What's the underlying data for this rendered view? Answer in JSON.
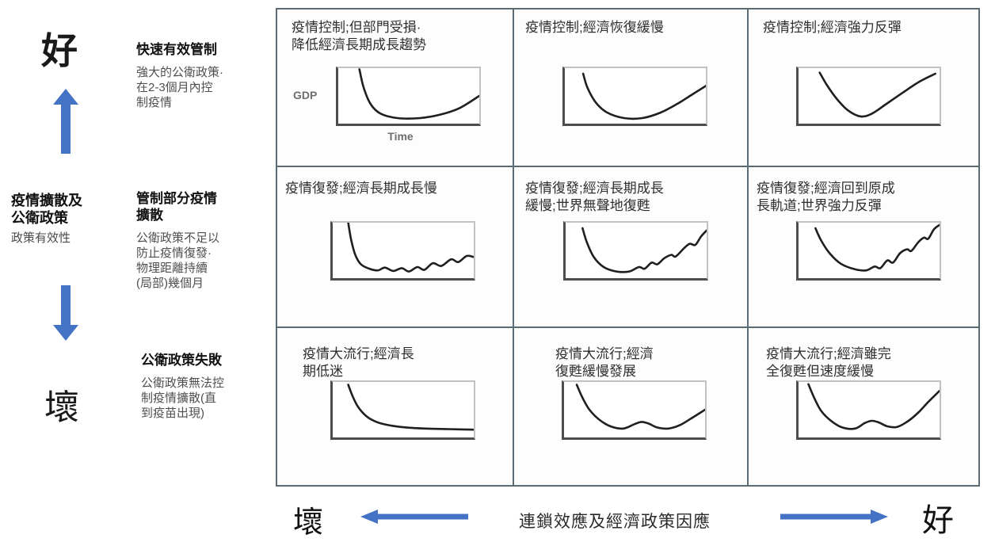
{
  "colors": {
    "accent_blue": "#4472C4",
    "grid_line": "#5b6b75",
    "curve": "#1f1f1f"
  },
  "y_axis": {
    "top_label": "好",
    "bottom_label": "壞",
    "title_bold": "疫情擴散及\n公衛政策",
    "title_sub": "政策有效性"
  },
  "x_axis": {
    "left_label": "壞",
    "title": "連鎖效應及經濟政策因應",
    "right_label": "好"
  },
  "row_headers": [
    {
      "title": "快速有效管制",
      "desc": "強大的公衛政策·\n在2-3個月內控\n制疫情"
    },
    {
      "title": "管制部分疫情\n擴散",
      "desc": "公衛政策不足以\n防止疫情復發·\n物理距離持續\n(局部)幾個月"
    },
    {
      "title": "公衛政策失敗",
      "desc": "公衛政策無法控\n制疫情擴散(直\n到疫苗出現)"
    }
  ],
  "first_chart_axis": {
    "gdp_label": "GDP",
    "time_label": "Time"
  },
  "cells": [
    {
      "caption": "疫情控制;但部門受損·\n降低經濟長期成長趨勢",
      "curve": [
        [
          15,
          2
        ],
        [
          18,
          35
        ],
        [
          23,
          65
        ],
        [
          30,
          82
        ],
        [
          42,
          90
        ],
        [
          58,
          90
        ],
        [
          72,
          84
        ],
        [
          86,
          72
        ],
        [
          100,
          50
        ]
      ]
    },
    {
      "caption": "疫情控制;經濟恢復緩慢",
      "curve": [
        [
          13,
          10
        ],
        [
          16,
          35
        ],
        [
          22,
          62
        ],
        [
          30,
          80
        ],
        [
          42,
          90
        ],
        [
          55,
          90
        ],
        [
          68,
          80
        ],
        [
          80,
          64
        ],
        [
          90,
          48
        ],
        [
          100,
          32
        ]
      ]
    },
    {
      "caption": "疫情控制;經濟強力反彈",
      "curve": [
        [
          15,
          8
        ],
        [
          20,
          30
        ],
        [
          27,
          55
        ],
        [
          35,
          76
        ],
        [
          44,
          87
        ],
        [
          52,
          82
        ],
        [
          62,
          65
        ],
        [
          74,
          44
        ],
        [
          86,
          24
        ],
        [
          97,
          10
        ]
      ]
    },
    {
      "caption": "疫情復發;經濟長期成長慢",
      "curve": [
        [
          11,
          0
        ],
        [
          13,
          30
        ],
        [
          16,
          58
        ],
        [
          20,
          75
        ],
        [
          26,
          83
        ],
        [
          32,
          86
        ],
        [
          37,
          81
        ],
        [
          43,
          87
        ],
        [
          49,
          82
        ],
        [
          54,
          88
        ],
        [
          60,
          80
        ],
        [
          65,
          85
        ],
        [
          71,
          73
        ],
        [
          77,
          78
        ],
        [
          84,
          66
        ],
        [
          89,
          71
        ],
        [
          95,
          60
        ],
        [
          100,
          62
        ]
      ]
    },
    {
      "caption": "疫情復發;經濟長期成長\n緩慢;世界無聲地復甦",
      "curve": [
        [
          12,
          10
        ],
        [
          15,
          35
        ],
        [
          20,
          62
        ],
        [
          27,
          80
        ],
        [
          36,
          88
        ],
        [
          45,
          88
        ],
        [
          52,
          80
        ],
        [
          56,
          83
        ],
        [
          61,
          72
        ],
        [
          65,
          75
        ],
        [
          70,
          64
        ],
        [
          75,
          58
        ],
        [
          78,
          61
        ],
        [
          84,
          46
        ],
        [
          88,
          38
        ],
        [
          92,
          40
        ],
        [
          96,
          25
        ],
        [
          100,
          14
        ]
      ]
    },
    {
      "caption": "疫情復發;經濟回到原成\n長軌道;世界強力反彈",
      "curve": [
        [
          12,
          10
        ],
        [
          16,
          32
        ],
        [
          22,
          55
        ],
        [
          30,
          74
        ],
        [
          40,
          84
        ],
        [
          48,
          86
        ],
        [
          54,
          79
        ],
        [
          58,
          82
        ],
        [
          63,
          68
        ],
        [
          67,
          72
        ],
        [
          72,
          55
        ],
        [
          77,
          48
        ],
        [
          80,
          51
        ],
        [
          85,
          35
        ],
        [
          89,
          27
        ],
        [
          92,
          29
        ],
        [
          96,
          12
        ],
        [
          100,
          4
        ]
      ]
    },
    {
      "caption": "疫情大流行;經濟長\n期低迷",
      "curve": [
        [
          11,
          5
        ],
        [
          14,
          25
        ],
        [
          18,
          45
        ],
        [
          24,
          62
        ],
        [
          31,
          72
        ],
        [
          40,
          78
        ],
        [
          52,
          82
        ],
        [
          66,
          84
        ],
        [
          82,
          85
        ],
        [
          100,
          86
        ]
      ]
    },
    {
      "caption": "疫情大流行;經濟\n復甦緩慢發展",
      "curve": [
        [
          9,
          5
        ],
        [
          13,
          28
        ],
        [
          18,
          50
        ],
        [
          25,
          68
        ],
        [
          33,
          80
        ],
        [
          42,
          84
        ],
        [
          50,
          76
        ],
        [
          55,
          72
        ],
        [
          60,
          75
        ],
        [
          66,
          82
        ],
        [
          74,
          84
        ],
        [
          82,
          78
        ],
        [
          90,
          66
        ],
        [
          100,
          50
        ]
      ]
    },
    {
      "caption": "疫情大流行;經濟雖完\n全復甦但速度緩慢",
      "curve": [
        [
          7,
          4
        ],
        [
          11,
          28
        ],
        [
          16,
          52
        ],
        [
          23,
          70
        ],
        [
          31,
          82
        ],
        [
          40,
          84
        ],
        [
          47,
          74
        ],
        [
          52,
          70
        ],
        [
          57,
          73
        ],
        [
          63,
          80
        ],
        [
          70,
          81
        ],
        [
          78,
          70
        ],
        [
          85,
          55
        ],
        [
          92,
          36
        ],
        [
          100,
          16
        ]
      ]
    }
  ]
}
